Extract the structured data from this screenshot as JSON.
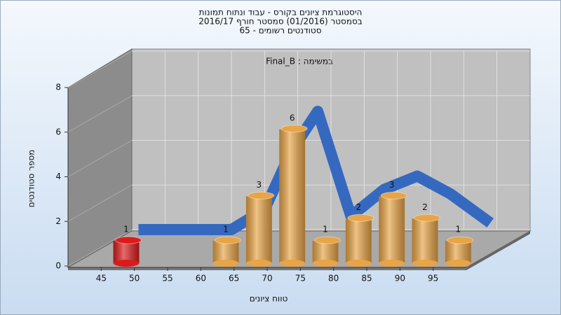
{
  "chart_data": {
    "type": "histogram",
    "title": [
      "היסטוגרמת ציונים בקורס - עבוד ונתוח תמונות",
      "בסמסטר  (01/2016)  סמסטר חורף 2016/17",
      "סטודנטים רשומים - 65"
    ],
    "annotation": "Final_B : במשימה",
    "xlabel": "טווח ציונים",
    "ylabel": "מספר סטודנטים",
    "bins": [
      45,
      50,
      55,
      60,
      65,
      70,
      75,
      80,
      85,
      90,
      95,
      100
    ],
    "values": [
      1,
      0,
      0,
      1,
      3,
      6,
      1,
      2,
      3,
      2,
      1
    ],
    "colors": [
      "#dd1a1a",
      "#e8a445",
      "#e8a445",
      "#e8a445",
      "#e8a445",
      "#e8a445",
      "#e8a445",
      "#e8a445",
      "#e8a445",
      "#e8a445",
      "#e8a445"
    ],
    "curve": {
      "color": "#3569c0",
      "x": [
        41,
        55,
        60,
        64,
        68,
        73,
        78,
        83,
        88,
        94
      ],
      "values": [
        0,
        0,
        0.9,
        3.5,
        5.3,
        0.6,
        1.8,
        2.4,
        1.6,
        0.3
      ]
    },
    "xlim": [
      40,
      100
    ],
    "xticks": [
      45,
      50,
      55,
      60,
      65,
      70,
      75,
      80,
      85,
      90,
      95
    ],
    "ylim": [
      0,
      8
    ],
    "yticks": [
      0,
      2,
      4,
      6,
      8
    ],
    "grid": true
  }
}
